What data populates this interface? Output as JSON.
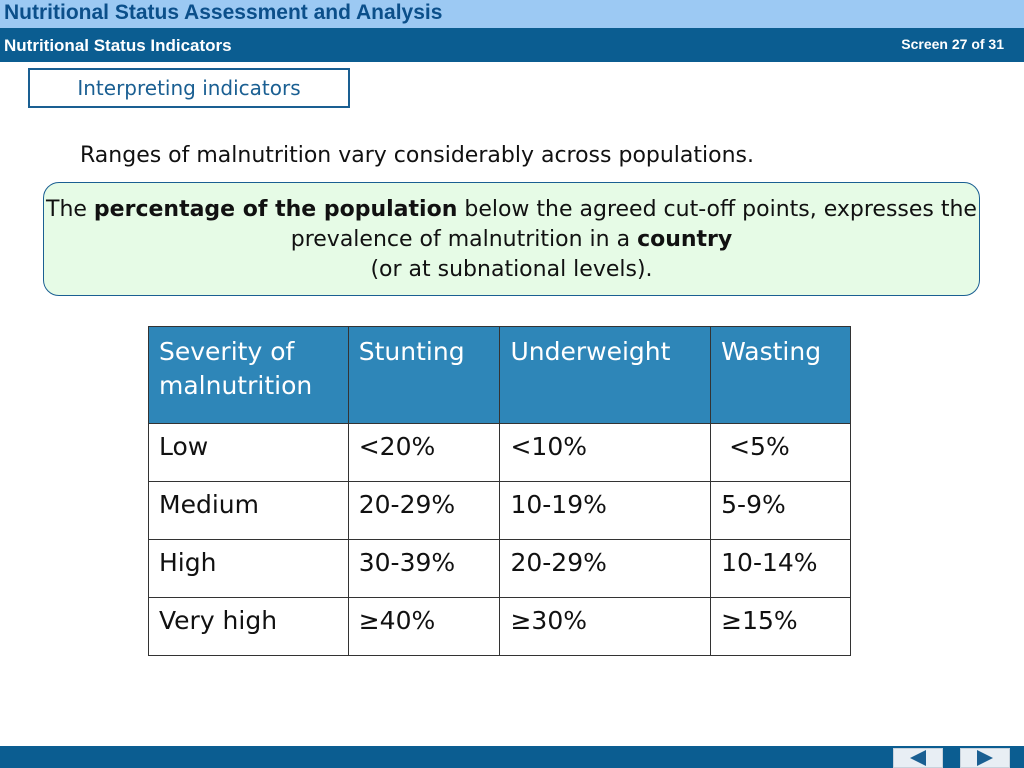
{
  "header": {
    "course_title": "Nutritional Status Assessment and Analysis",
    "section_title": "Nutritional Status Indicators",
    "screen_counter": "Screen 27 of 31"
  },
  "topic": {
    "label": "Interpreting indicators"
  },
  "intro": "Ranges of malnutrition vary considerably across populations.",
  "note": {
    "part1": "The ",
    "bold1": "percentage of the population",
    "part2": " below the agreed cut-off points, expresses the prevalence of malnutrition in a ",
    "bold2": "country",
    "part3": "(or at subnational levels)."
  },
  "table": {
    "headers": [
      "Severity of malnutrition",
      "Stunting",
      "Underweight",
      "Wasting"
    ],
    "rows": [
      [
        "Low",
        "<20%",
        "<10%",
        " <5%"
      ],
      [
        "Medium",
        "20-29%",
        "10-19%",
        "5-9%"
      ],
      [
        "High",
        "30-39%",
        "20-29%",
        "10-14%"
      ],
      [
        "Very high",
        "≥40%",
        "≥30%",
        "≥15%"
      ]
    ]
  },
  "navigation": {
    "prev_icon": "triangle-left-icon",
    "next_icon": "triangle-right-icon"
  },
  "colors": {
    "header_light": "#9cc9f3",
    "header_dark": "#0b5d91",
    "table_header": "#2e86b8",
    "note_bg": "#e6fbe6"
  }
}
